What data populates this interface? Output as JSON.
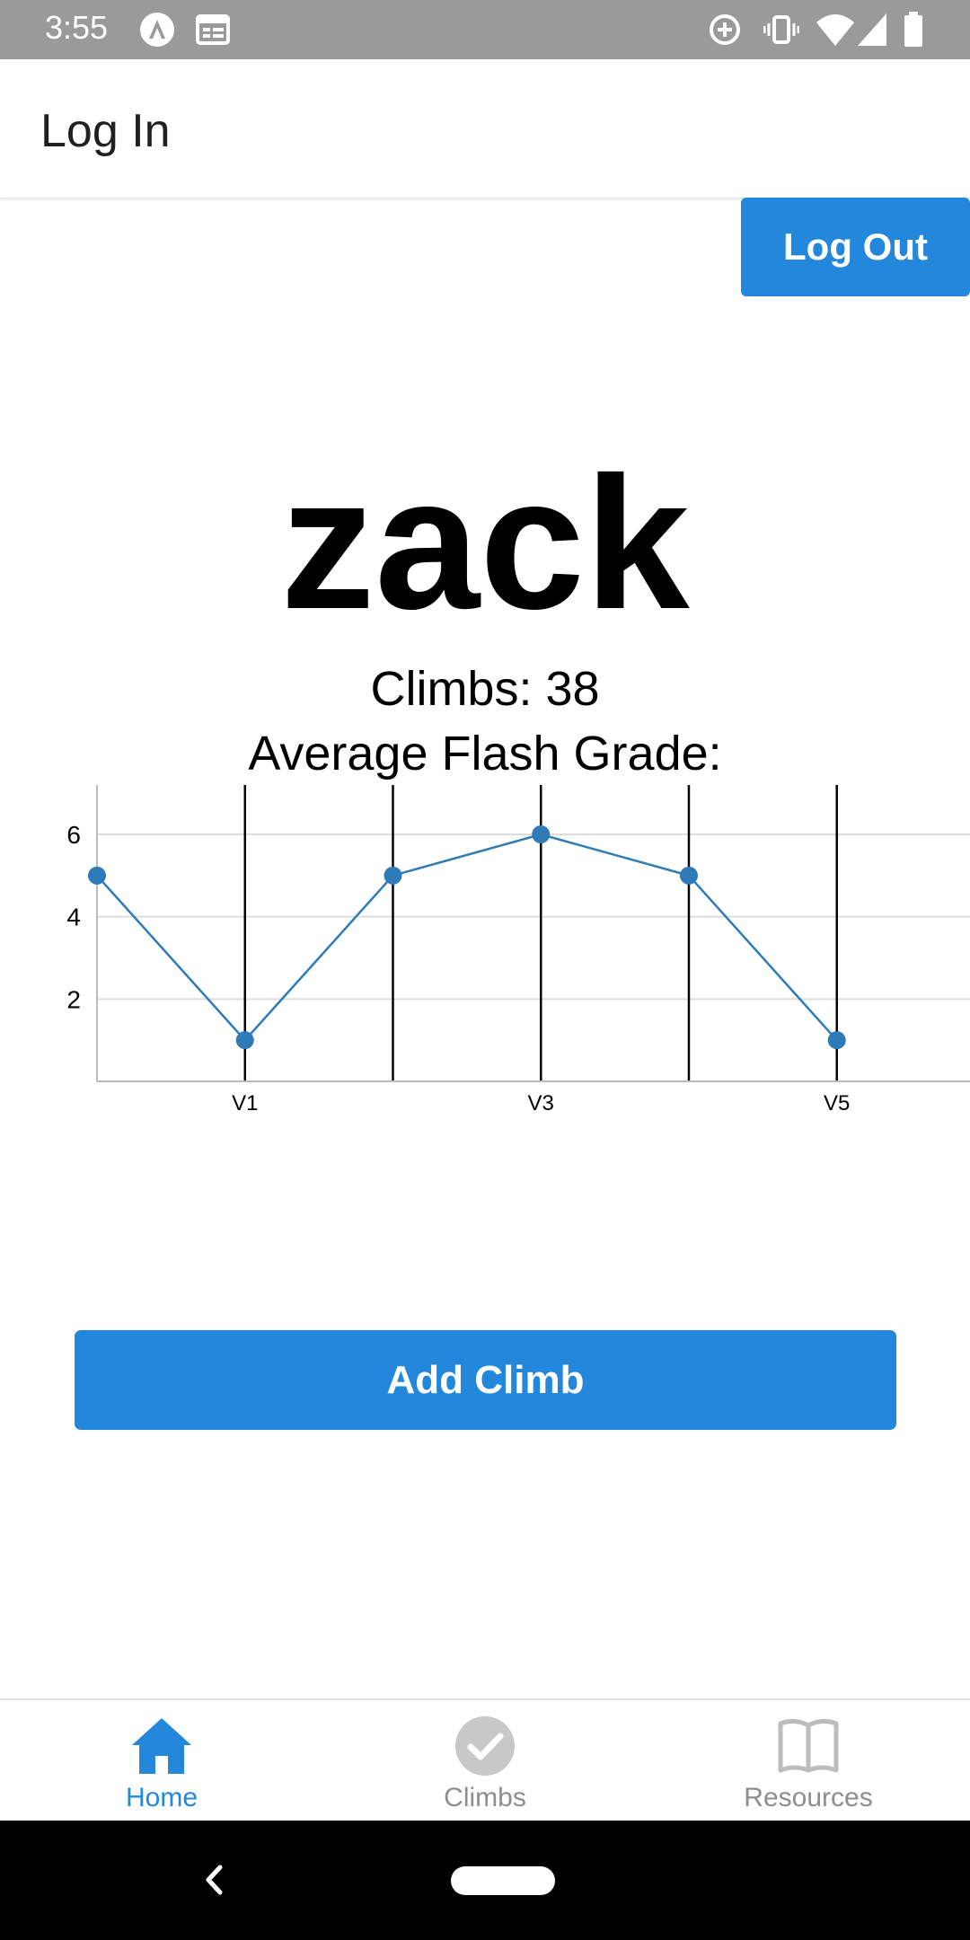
{
  "status_bar": {
    "time": "3:55"
  },
  "header": {
    "title": "Log In"
  },
  "logout_button": {
    "label": "Log Out"
  },
  "profile": {
    "username": "zack",
    "climbs_text": "Climbs: 38",
    "avg_flash_label": "Average Flash Grade:"
  },
  "chart_data": {
    "type": "line",
    "x": [
      0,
      1,
      2,
      3,
      4,
      5
    ],
    "x_tick_labels": [
      {
        "x": 1,
        "label": "V1"
      },
      {
        "x": 3,
        "label": "V3"
      },
      {
        "x": 5,
        "label": "V5"
      }
    ],
    "y_ticks": [
      2,
      4,
      6
    ],
    "series": [
      {
        "values": [
          5,
          1,
          5,
          6,
          5,
          1
        ]
      }
    ],
    "xlim": [
      0,
      5.9
    ],
    "ylim": [
      0,
      7.2
    ],
    "grid": true,
    "line_color": "#2e7bb8"
  },
  "add_climb_button": {
    "label": "Add Climb"
  },
  "tabs": [
    {
      "label": "Home",
      "icon": "home-icon",
      "active": true
    },
    {
      "label": "Climbs",
      "icon": "check-circle-icon",
      "active": false
    },
    {
      "label": "Resources",
      "icon": "book-icon",
      "active": false
    }
  ],
  "colors": {
    "accent": "#2387dc",
    "status_bar": "#9a9a9a",
    "inactive_tab": "#8e8e8e"
  }
}
